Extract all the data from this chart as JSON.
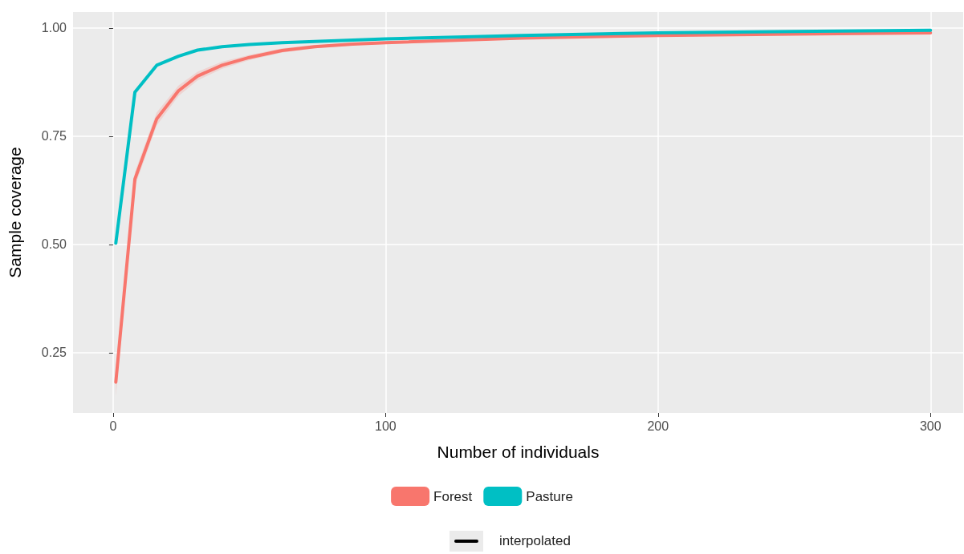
{
  "chart_data": {
    "type": "line",
    "xlabel": "Number of individuals",
    "ylabel": "Sample coverage",
    "x": [
      1,
      8,
      16,
      24,
      31,
      40,
      50,
      62,
      74,
      88,
      100,
      150,
      200,
      250,
      300
    ],
    "series": [
      {
        "name": "Forest",
        "color": "#f8766d",
        "values": [
          0.182,
          0.651,
          0.79,
          0.855,
          0.889,
          0.914,
          0.932,
          0.948,
          0.957,
          0.963,
          0.966,
          0.977,
          0.983,
          0.986,
          0.989
        ],
        "lower": [
          0.15,
          0.635,
          0.775,
          0.843,
          0.879,
          0.906,
          0.926,
          0.943,
          0.953,
          0.96,
          0.963,
          0.975,
          0.981,
          0.985,
          0.988
        ],
        "upper": [
          0.214,
          0.667,
          0.805,
          0.867,
          0.899,
          0.922,
          0.938,
          0.953,
          0.961,
          0.966,
          0.969,
          0.979,
          0.985,
          0.987,
          0.99
        ]
      },
      {
        "name": "Pasture",
        "color": "#00bfc4",
        "values": [
          0.503,
          0.852,
          0.914,
          0.935,
          0.949,
          0.957,
          0.962,
          0.966,
          0.969,
          0.972,
          0.975,
          0.983,
          0.989,
          0.992,
          0.995
        ]
      }
    ],
    "xlim": [
      -14.7,
      312
    ],
    "ylim": [
      0.111,
      1.037
    ],
    "xticks": [
      0,
      100,
      200,
      300
    ],
    "yticks": [
      {
        "value": 0.25,
        "label": "0.25"
      },
      {
        "value": 0.5,
        "label": "0.50"
      },
      {
        "value": 0.75,
        "label": "0.75"
      },
      {
        "value": 1,
        "label": "1.00"
      }
    ],
    "grid": true,
    "legend": "bottom",
    "marker": "none",
    "line_style": "solid",
    "annotations": [
      "interpolated"
    ]
  }
}
